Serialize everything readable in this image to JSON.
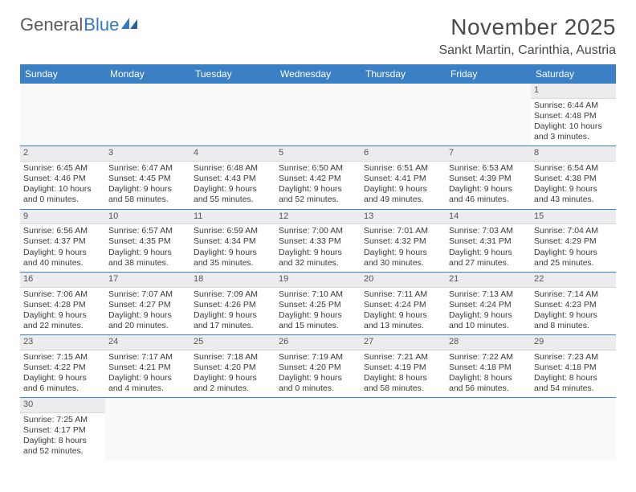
{
  "logo": {
    "text1": "General",
    "text2": "Blue"
  },
  "title": "November 2025",
  "location": "Sankt Martin, Carinthia, Austria",
  "colors": {
    "header_bg": "#3b7fc4",
    "header_text": "#ffffff",
    "daynum_bg": "#ececee",
    "row_border": "#3b7fc4",
    "text": "#3a3a3a",
    "title_color": "#4a4a4a",
    "logo_gray": "#5a5a5a",
    "logo_blue": "#3578c4"
  },
  "weekdays": [
    "Sunday",
    "Monday",
    "Tuesday",
    "Wednesday",
    "Thursday",
    "Friday",
    "Saturday"
  ],
  "weeks": [
    [
      {
        "empty": true
      },
      {
        "empty": true
      },
      {
        "empty": true
      },
      {
        "empty": true
      },
      {
        "empty": true
      },
      {
        "empty": true
      },
      {
        "num": "1",
        "sunrise": "Sunrise: 6:44 AM",
        "sunset": "Sunset: 4:48 PM",
        "day1": "Daylight: 10 hours",
        "day2": "and 3 minutes."
      }
    ],
    [
      {
        "num": "2",
        "sunrise": "Sunrise: 6:45 AM",
        "sunset": "Sunset: 4:46 PM",
        "day1": "Daylight: 10 hours",
        "day2": "and 0 minutes."
      },
      {
        "num": "3",
        "sunrise": "Sunrise: 6:47 AM",
        "sunset": "Sunset: 4:45 PM",
        "day1": "Daylight: 9 hours",
        "day2": "and 58 minutes."
      },
      {
        "num": "4",
        "sunrise": "Sunrise: 6:48 AM",
        "sunset": "Sunset: 4:43 PM",
        "day1": "Daylight: 9 hours",
        "day2": "and 55 minutes."
      },
      {
        "num": "5",
        "sunrise": "Sunrise: 6:50 AM",
        "sunset": "Sunset: 4:42 PM",
        "day1": "Daylight: 9 hours",
        "day2": "and 52 minutes."
      },
      {
        "num": "6",
        "sunrise": "Sunrise: 6:51 AM",
        "sunset": "Sunset: 4:41 PM",
        "day1": "Daylight: 9 hours",
        "day2": "and 49 minutes."
      },
      {
        "num": "7",
        "sunrise": "Sunrise: 6:53 AM",
        "sunset": "Sunset: 4:39 PM",
        "day1": "Daylight: 9 hours",
        "day2": "and 46 minutes."
      },
      {
        "num": "8",
        "sunrise": "Sunrise: 6:54 AM",
        "sunset": "Sunset: 4:38 PM",
        "day1": "Daylight: 9 hours",
        "day2": "and 43 minutes."
      }
    ],
    [
      {
        "num": "9",
        "sunrise": "Sunrise: 6:56 AM",
        "sunset": "Sunset: 4:37 PM",
        "day1": "Daylight: 9 hours",
        "day2": "and 40 minutes."
      },
      {
        "num": "10",
        "sunrise": "Sunrise: 6:57 AM",
        "sunset": "Sunset: 4:35 PM",
        "day1": "Daylight: 9 hours",
        "day2": "and 38 minutes."
      },
      {
        "num": "11",
        "sunrise": "Sunrise: 6:59 AM",
        "sunset": "Sunset: 4:34 PM",
        "day1": "Daylight: 9 hours",
        "day2": "and 35 minutes."
      },
      {
        "num": "12",
        "sunrise": "Sunrise: 7:00 AM",
        "sunset": "Sunset: 4:33 PM",
        "day1": "Daylight: 9 hours",
        "day2": "and 32 minutes."
      },
      {
        "num": "13",
        "sunrise": "Sunrise: 7:01 AM",
        "sunset": "Sunset: 4:32 PM",
        "day1": "Daylight: 9 hours",
        "day2": "and 30 minutes."
      },
      {
        "num": "14",
        "sunrise": "Sunrise: 7:03 AM",
        "sunset": "Sunset: 4:31 PM",
        "day1": "Daylight: 9 hours",
        "day2": "and 27 minutes."
      },
      {
        "num": "15",
        "sunrise": "Sunrise: 7:04 AM",
        "sunset": "Sunset: 4:29 PM",
        "day1": "Daylight: 9 hours",
        "day2": "and 25 minutes."
      }
    ],
    [
      {
        "num": "16",
        "sunrise": "Sunrise: 7:06 AM",
        "sunset": "Sunset: 4:28 PM",
        "day1": "Daylight: 9 hours",
        "day2": "and 22 minutes."
      },
      {
        "num": "17",
        "sunrise": "Sunrise: 7:07 AM",
        "sunset": "Sunset: 4:27 PM",
        "day1": "Daylight: 9 hours",
        "day2": "and 20 minutes."
      },
      {
        "num": "18",
        "sunrise": "Sunrise: 7:09 AM",
        "sunset": "Sunset: 4:26 PM",
        "day1": "Daylight: 9 hours",
        "day2": "and 17 minutes."
      },
      {
        "num": "19",
        "sunrise": "Sunrise: 7:10 AM",
        "sunset": "Sunset: 4:25 PM",
        "day1": "Daylight: 9 hours",
        "day2": "and 15 minutes."
      },
      {
        "num": "20",
        "sunrise": "Sunrise: 7:11 AM",
        "sunset": "Sunset: 4:24 PM",
        "day1": "Daylight: 9 hours",
        "day2": "and 13 minutes."
      },
      {
        "num": "21",
        "sunrise": "Sunrise: 7:13 AM",
        "sunset": "Sunset: 4:24 PM",
        "day1": "Daylight: 9 hours",
        "day2": "and 10 minutes."
      },
      {
        "num": "22",
        "sunrise": "Sunrise: 7:14 AM",
        "sunset": "Sunset: 4:23 PM",
        "day1": "Daylight: 9 hours",
        "day2": "and 8 minutes."
      }
    ],
    [
      {
        "num": "23",
        "sunrise": "Sunrise: 7:15 AM",
        "sunset": "Sunset: 4:22 PM",
        "day1": "Daylight: 9 hours",
        "day2": "and 6 minutes."
      },
      {
        "num": "24",
        "sunrise": "Sunrise: 7:17 AM",
        "sunset": "Sunset: 4:21 PM",
        "day1": "Daylight: 9 hours",
        "day2": "and 4 minutes."
      },
      {
        "num": "25",
        "sunrise": "Sunrise: 7:18 AM",
        "sunset": "Sunset: 4:20 PM",
        "day1": "Daylight: 9 hours",
        "day2": "and 2 minutes."
      },
      {
        "num": "26",
        "sunrise": "Sunrise: 7:19 AM",
        "sunset": "Sunset: 4:20 PM",
        "day1": "Daylight: 9 hours",
        "day2": "and 0 minutes."
      },
      {
        "num": "27",
        "sunrise": "Sunrise: 7:21 AM",
        "sunset": "Sunset: 4:19 PM",
        "day1": "Daylight: 8 hours",
        "day2": "and 58 minutes."
      },
      {
        "num": "28",
        "sunrise": "Sunrise: 7:22 AM",
        "sunset": "Sunset: 4:18 PM",
        "day1": "Daylight: 8 hours",
        "day2": "and 56 minutes."
      },
      {
        "num": "29",
        "sunrise": "Sunrise: 7:23 AM",
        "sunset": "Sunset: 4:18 PM",
        "day1": "Daylight: 8 hours",
        "day2": "and 54 minutes."
      }
    ],
    [
      {
        "num": "30",
        "sunrise": "Sunrise: 7:25 AM",
        "sunset": "Sunset: 4:17 PM",
        "day1": "Daylight: 8 hours",
        "day2": "and 52 minutes."
      },
      {
        "empty": true
      },
      {
        "empty": true
      },
      {
        "empty": true
      },
      {
        "empty": true
      },
      {
        "empty": true
      },
      {
        "empty": true
      }
    ]
  ]
}
